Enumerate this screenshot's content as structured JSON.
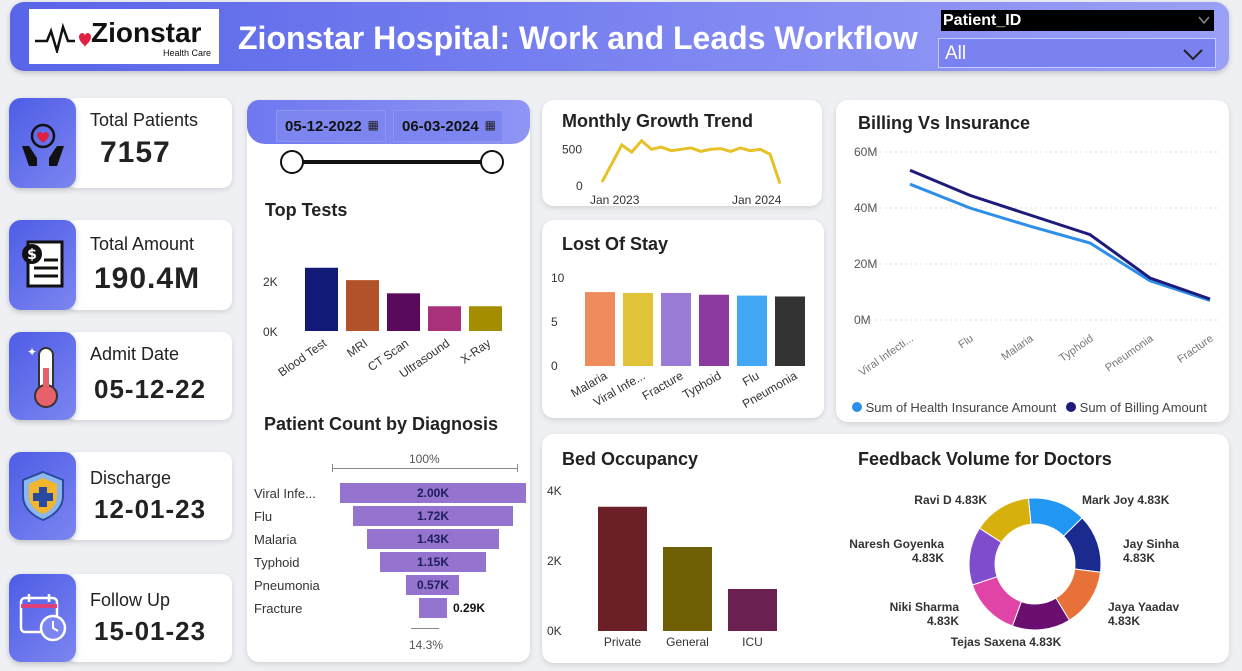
{
  "header": {
    "logo_text": "Zionstar",
    "logo_sub": "Health Care",
    "title": "Zionstar Hospital: Work and Leads Workflow",
    "slicer_label": "Patient_ID",
    "slicer_value": "All"
  },
  "kpis": [
    {
      "label": "Total Patients",
      "value": "7157",
      "icon": "hands-heart-icon"
    },
    {
      "label": "Total Amount",
      "value": "190.4M",
      "icon": "bill-icon"
    },
    {
      "label": "Admit Date",
      "value": "05-12-22",
      "icon": "thermometer-icon"
    },
    {
      "label": "Discharge",
      "value": "12-01-23",
      "icon": "shield-plus-icon"
    },
    {
      "label": "Follow Up",
      "value": "15-01-23",
      "icon": "calendar-clock-icon"
    }
  ],
  "date_range": {
    "start": "05-12-2022",
    "end": "06-03-2024"
  },
  "top_tests": {
    "title": "Top Tests",
    "yticks": [
      "2K",
      "0K"
    ],
    "categories": [
      "Blood Test",
      "MRI",
      "CT Scan",
      "Ultrasound",
      "X-Ray"
    ],
    "values": [
      2300,
      1850,
      1370,
      900,
      900
    ],
    "ymax": 3200,
    "colors": [
      "#121a78",
      "#b2522a",
      "#5a0a5a",
      "#a8317a",
      "#a48e00"
    ]
  },
  "funnel": {
    "title": "Patient Count by Diagnosis",
    "top_pct": "100%",
    "bottom_pct": "14.3%",
    "categories": [
      "Viral Infe...",
      "Flu",
      "Malaria",
      "Typhoid",
      "Pneumonia",
      "Fracture"
    ],
    "values": [
      2000,
      1720,
      1430,
      1150,
      570,
      290
    ],
    "labels": [
      "2.00K",
      "1.72K",
      "1.43K",
      "1.15K",
      "0.57K",
      "0.29K"
    ]
  },
  "monthly_trend": {
    "title": "Monthly Growth Trend",
    "yticks": [
      "500",
      "0"
    ],
    "xticks": [
      "Jan 2023",
      "Jan 2024"
    ],
    "values": [
      40,
      300,
      560,
      460,
      620,
      500,
      530,
      480,
      500,
      520,
      470,
      500,
      510,
      470,
      520,
      480,
      500,
      430,
      20
    ],
    "ymax": 700
  },
  "length_of_stay": {
    "title": "Lost Of Stay",
    "yticks": [
      "10",
      "5",
      "0"
    ],
    "categories": [
      "Malaria",
      "Viral Infe...",
      "Fracture",
      "Typhoid",
      "Flu",
      "Pneumonia"
    ],
    "values": [
      8.4,
      8.3,
      8.3,
      8.1,
      8.0,
      7.9
    ],
    "ymax": 11,
    "colors": [
      "#ee8c5e",
      "#e1c33a",
      "#9a7bd6",
      "#8d3aa0",
      "#42a8f6",
      "#333333"
    ]
  },
  "billing": {
    "title": "Billing Vs Insurance",
    "yticks": [
      "60M",
      "40M",
      "20M",
      "0M"
    ],
    "categories": [
      "Viral Infecti...",
      "Flu",
      "Malaria",
      "Typhoid",
      "Pneumonia",
      "Fracture"
    ],
    "series": [
      {
        "name": "Sum of Health Insurance Amount",
        "color": "#2d8fe8",
        "values": [
          48.5,
          40.0,
          33.5,
          27.5,
          14.0,
          7.0
        ]
      },
      {
        "name": "Sum of Billing Amount",
        "color": "#1e1b7a",
        "values": [
          53.5,
          44.5,
          37.5,
          30.5,
          15.0,
          7.5
        ]
      }
    ],
    "ymax": 60
  },
  "bed_occupancy": {
    "title": "Bed Occupancy",
    "yticks": [
      "4K",
      "2K",
      "0K"
    ],
    "categories": [
      "Private",
      "General",
      "ICU"
    ],
    "values": [
      3550,
      2400,
      1200
    ],
    "ymax": 4000,
    "colors": [
      "#6b2028",
      "#6e5e04",
      "#6a2152"
    ]
  },
  "feedback": {
    "title": "Feedback Volume for Doctors",
    "slices": [
      {
        "name": "Mark Joy",
        "value": "4.83K",
        "color": "#2196f3"
      },
      {
        "name": "Jay Sinha",
        "value": "4.83K",
        "color": "#1a2a8e"
      },
      {
        "name": "Jaya Yaadav",
        "value": "4.83K",
        "color": "#e8713a"
      },
      {
        "name": "Tejas Saxena",
        "value": "4.83K",
        "color": "#6a0e70"
      },
      {
        "name": "Niki Sharma",
        "value": "4.83K",
        "color": "#e044a6"
      },
      {
        "name": "Naresh Goyenka",
        "value": "4.83K",
        "color": "#7e4ccc"
      },
      {
        "name": "Ravi D",
        "value": "4.83K",
        "color": "#d6b00c"
      }
    ]
  }
}
